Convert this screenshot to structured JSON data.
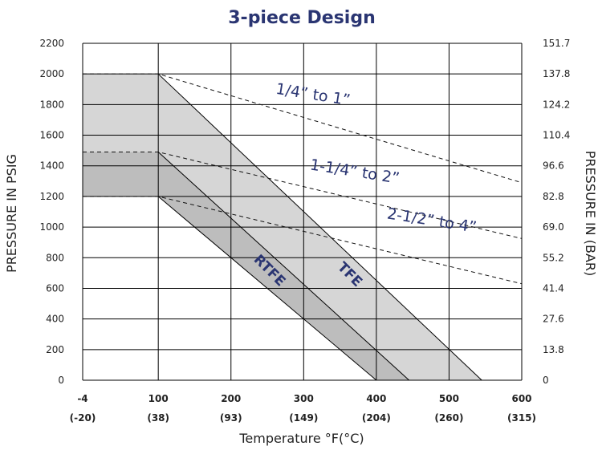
{
  "chart_data": {
    "type": "area",
    "title": "3-piece Design",
    "xlabel": "Temperature °F(°C)",
    "ylabel": "PRESSURE IN PSIG",
    "ylabel_right": "PRESSURE IN (BAR)",
    "x_ticks": [
      {
        "value": -4,
        "label": "-4",
        "sub": "(-20)"
      },
      {
        "value": 100,
        "label": "100",
        "sub": "(38)"
      },
      {
        "value": 200,
        "label": "200",
        "sub": "(93)"
      },
      {
        "value": 300,
        "label": "300",
        "sub": "(149)"
      },
      {
        "value": 400,
        "label": "400",
        "sub": "(204)"
      },
      {
        "value": 500,
        "label": "500",
        "sub": "(260)"
      },
      {
        "value": 600,
        "label": "600",
        "sub": "(315)"
      }
    ],
    "y_ticks": [
      0,
      200,
      400,
      600,
      800,
      1000,
      1200,
      1400,
      1600,
      1800,
      2000,
      2200
    ],
    "y_ticks_right": [
      "0",
      "13.8",
      "27.6",
      "41.4",
      "55.2",
      "69.0",
      "82.8",
      "96.6",
      "110.4",
      "124.2",
      "137.8",
      "151.7"
    ],
    "xlim": [
      -4,
      600
    ],
    "ylim": [
      0,
      2200
    ],
    "grid": true,
    "regions": [
      {
        "name": "TFE",
        "color": "#d6d6d6",
        "points": [
          [
            -4,
            2000
          ],
          [
            100,
            2000
          ],
          [
            545,
            0
          ],
          [
            -4,
            0
          ]
        ]
      },
      {
        "name": "RTFE",
        "color": "#bdbdbd",
        "points": [
          [
            -4,
            1490
          ],
          [
            100,
            1490
          ],
          [
            445,
            0
          ],
          [
            -4,
            0
          ]
        ]
      },
      {
        "name": "",
        "color": "#ffffff",
        "points": [
          [
            -4,
            1200
          ],
          [
            100,
            1200
          ],
          [
            400,
            0
          ],
          [
            -4,
            0
          ]
        ]
      }
    ],
    "boundary_lines": [
      {
        "name": "TFE",
        "x": [
          100,
          545
        ],
        "y": [
          2000,
          0
        ]
      },
      {
        "name": "RTFE",
        "x": [
          100,
          445
        ],
        "y": [
          1490,
          0
        ]
      },
      {
        "name": "",
        "x": [
          100,
          400
        ],
        "y": [
          1200,
          0
        ]
      }
    ],
    "size_lines": [
      {
        "name": "1/4” to 1”",
        "x": [
          -4,
          100,
          600
        ],
        "y": [
          2000,
          2000,
          1290
        ]
      },
      {
        "name": "1-1/4” to 2”",
        "x": [
          -4,
          100,
          600
        ],
        "y": [
          1490,
          1490,
          925
        ]
      },
      {
        "name": "2-1/2” to 4”",
        "x": [
          -4,
          100,
          600
        ],
        "y": [
          1200,
          1200,
          630
        ]
      }
    ]
  }
}
